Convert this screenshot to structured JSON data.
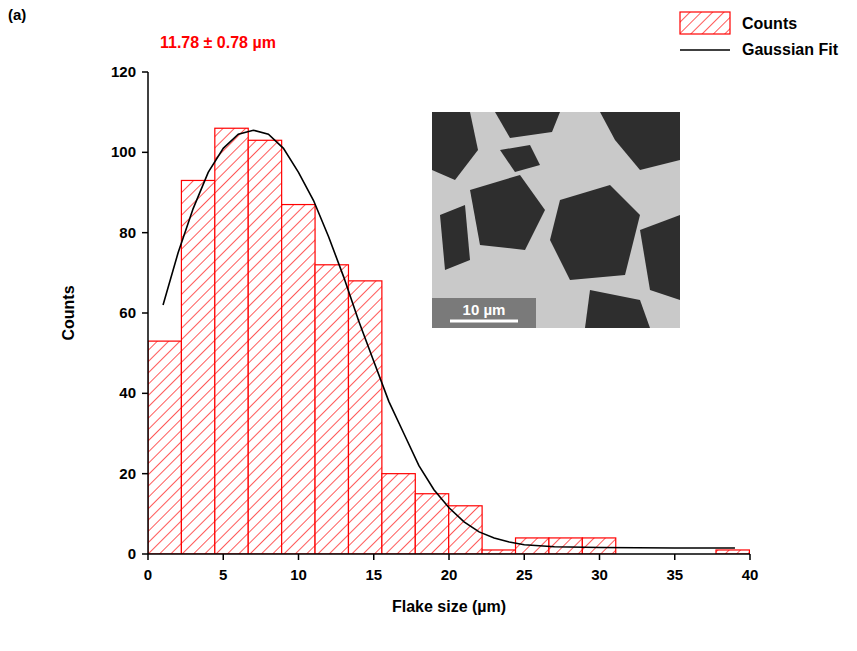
{
  "chart_data": {
    "type": "histogram",
    "panel_label": "(a)",
    "x_label": "Flake size (µm)",
    "y_label": "Counts",
    "annotations": [
      {
        "text": "11.78 ± 0.78 µm",
        "color": "#ff0000"
      }
    ],
    "inset_scale_bar": "10 µm",
    "bins": [
      0,
      2.22,
      4.44,
      6.66,
      8.88,
      11.1,
      13.32,
      15.54,
      17.76,
      19.98,
      22.2,
      24.42,
      26.64,
      28.86,
      31.08,
      33.3,
      35.52,
      37.74,
      39.96
    ],
    "series": [
      {
        "name": "Counts",
        "type": "histogram",
        "color": "#ff0000",
        "values": [
          53,
          93,
          106,
          103,
          87,
          72,
          68,
          20,
          15,
          12,
          1,
          4,
          4,
          4,
          0,
          0,
          0,
          1
        ]
      },
      {
        "name": "Gaussian Fit",
        "type": "line",
        "color": "#000000",
        "line_style": "solid",
        "x": [
          1,
          2,
          3,
          4,
          5,
          6,
          7,
          8,
          9,
          10,
          11,
          12,
          13,
          14,
          15,
          16,
          17,
          18,
          19,
          20,
          21,
          22,
          23,
          24,
          25,
          27,
          30,
          35,
          39
        ],
        "values": [
          62,
          75,
          86,
          95,
          101,
          104.5,
          105.5,
          104.5,
          101,
          95,
          88,
          79,
          69,
          58,
          48,
          38,
          30,
          22,
          16,
          11.5,
          8,
          5.5,
          4,
          3,
          2.3,
          1.8,
          1.6,
          1.5,
          1.5
        ]
      }
    ],
    "xlim": [
      0,
      40
    ],
    "xticks": [
      0,
      5,
      10,
      15,
      20,
      25,
      30,
      35,
      40
    ],
    "ylim": [
      0,
      120
    ],
    "yticks": [
      0,
      20,
      40,
      60,
      80,
      100,
      120
    ],
    "legend": "top-right",
    "grid": false
  }
}
